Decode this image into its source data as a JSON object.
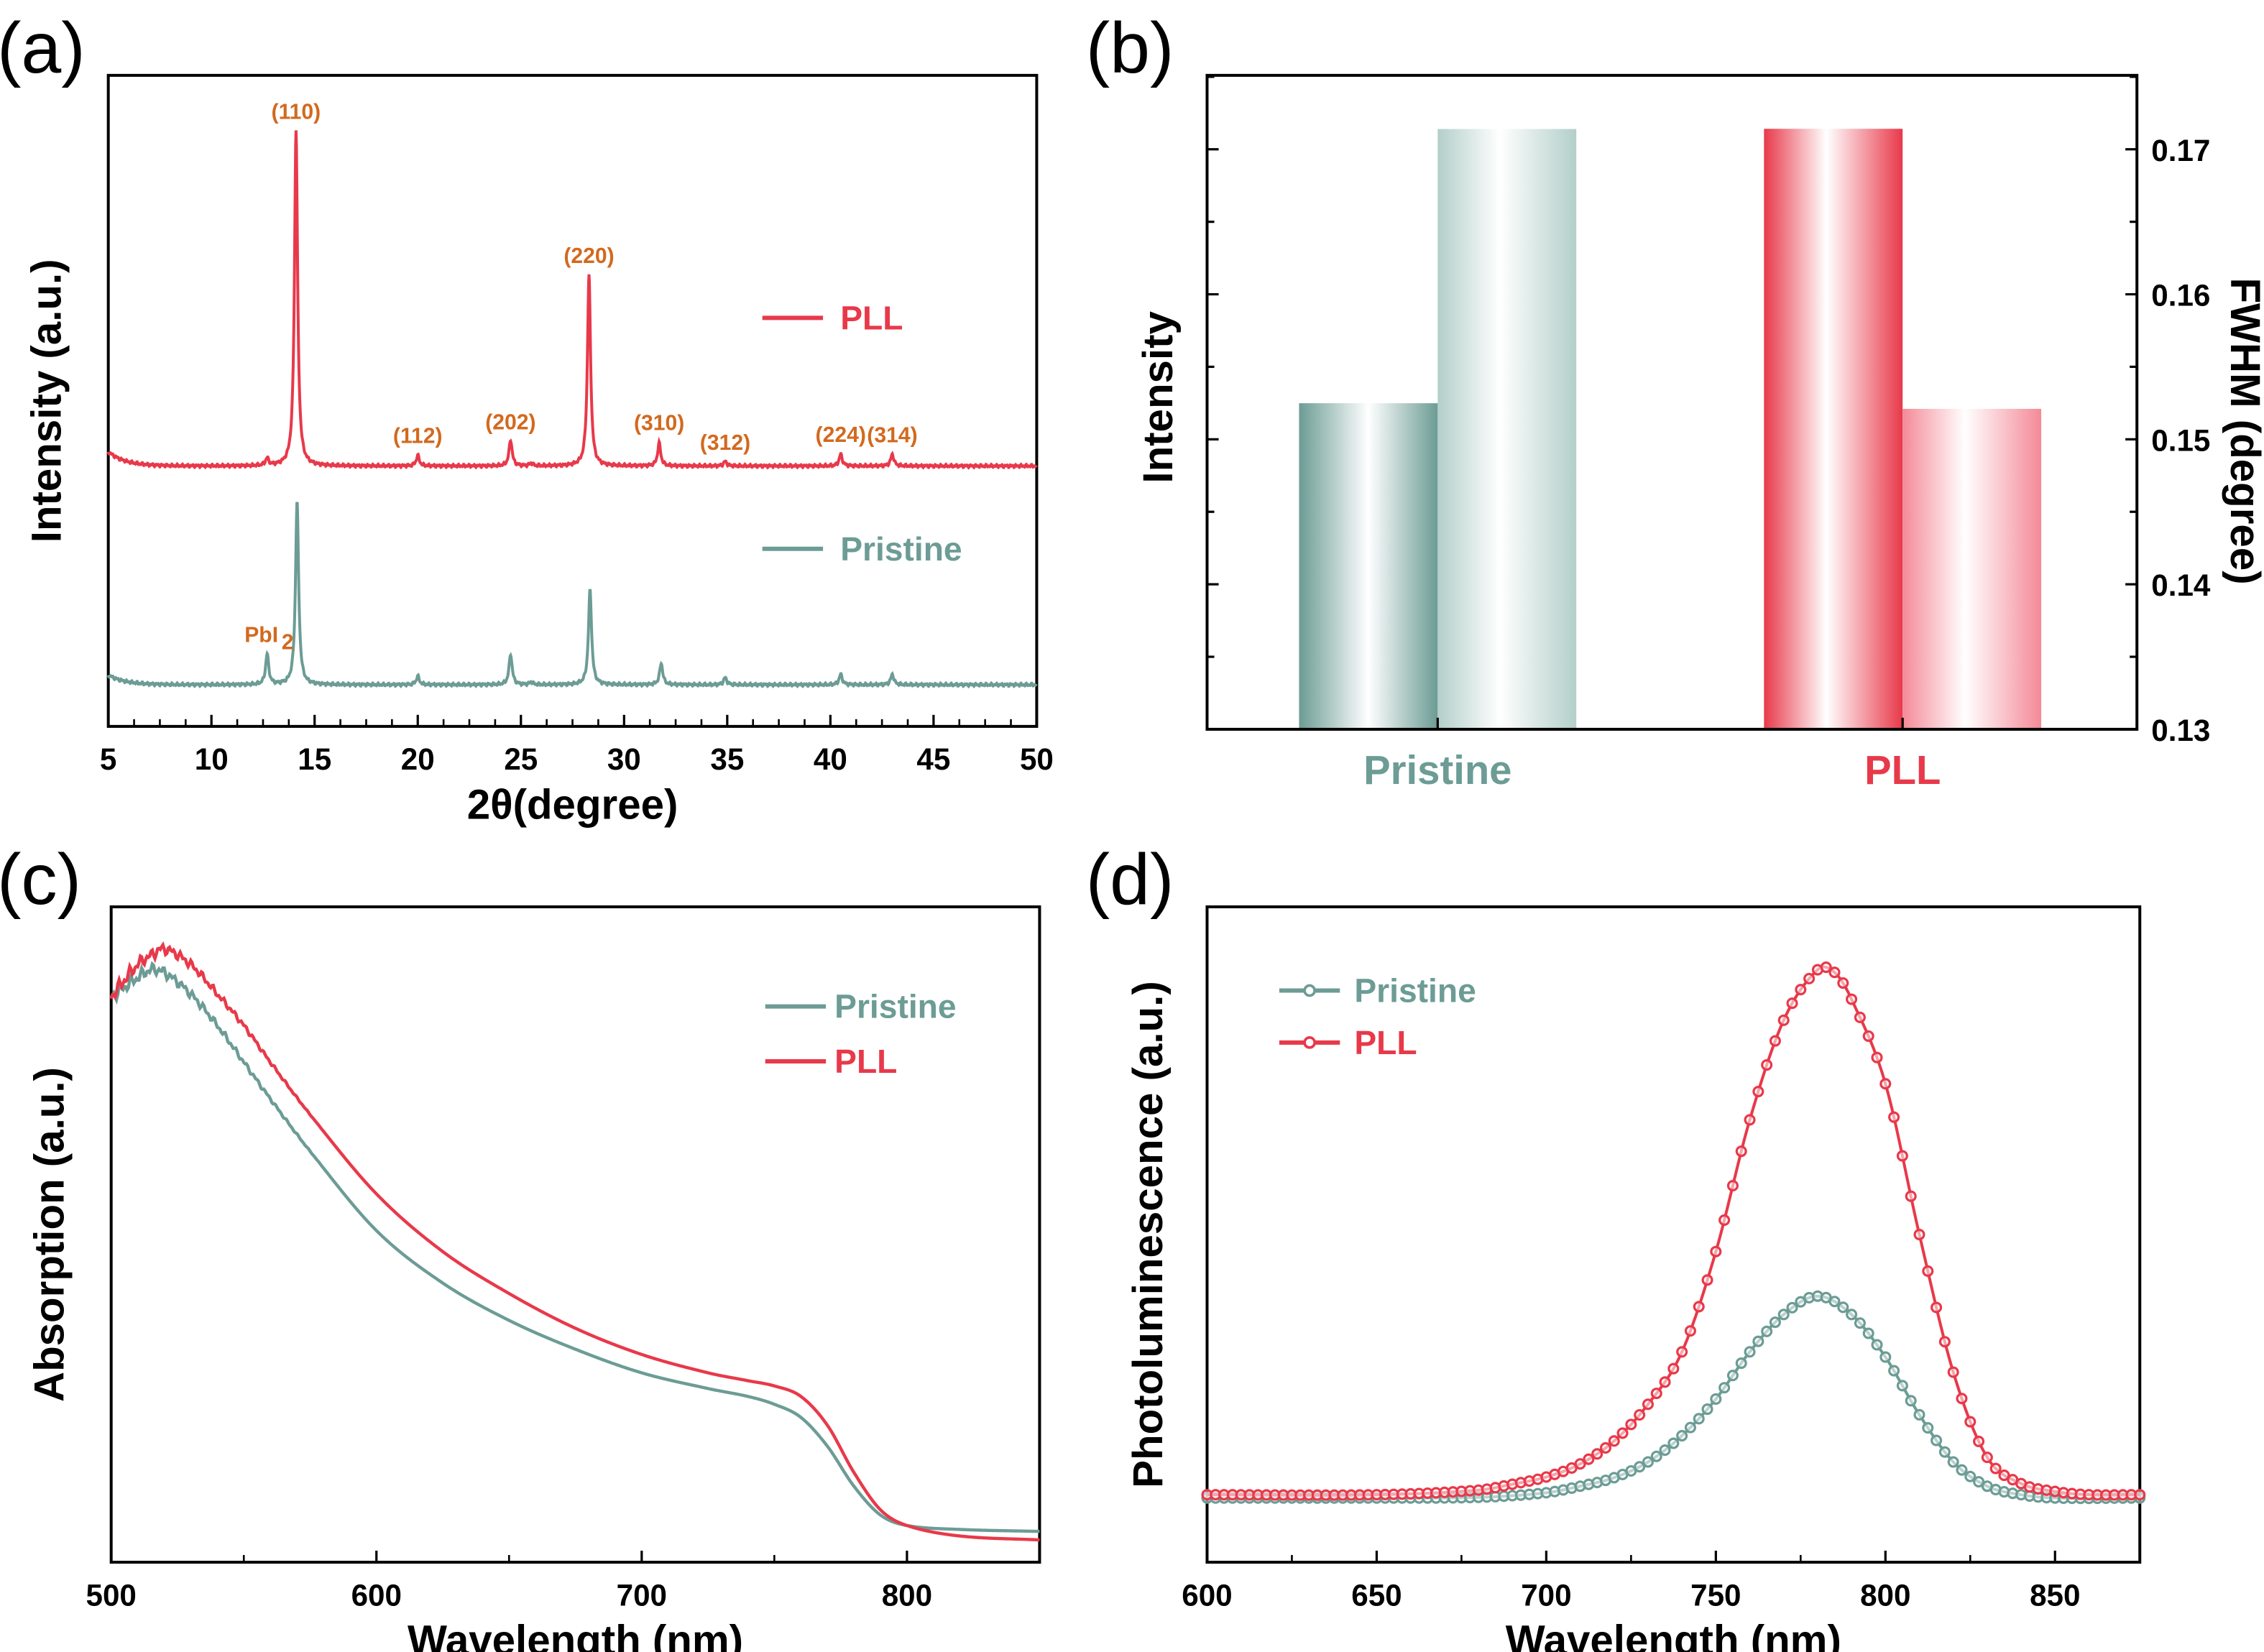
{
  "panels": {
    "a": "(a)",
    "b": "(b)",
    "c": "(c)",
    "d": "(d)"
  },
  "colors": {
    "pll": "#E8394A",
    "pristine": "#6C9C95",
    "pll_light": "#F48A98",
    "pristine_light": "#B3CFC9",
    "annotation": "#D2691E"
  },
  "chart_data": [
    {
      "panel": "a",
      "type": "line",
      "xlabel": "2θ(degree)",
      "ylabel": "Intensity (a.u.)",
      "xlim": [
        5,
        50
      ],
      "ylim": [
        0,
        100
      ],
      "xticks": [
        "5",
        "10",
        "15",
        "20",
        "25",
        "30",
        "35",
        "40",
        "45",
        "50"
      ],
      "grid": false,
      "legend": {
        "placement": "right",
        "entries": [
          "PLL",
          "Pristine"
        ]
      },
      "series": [
        {
          "name": "PLL",
          "color_key": "pll",
          "baseline": 40,
          "peaks": [
            {
              "x": 12.7,
              "intensity": 1.1
            },
            {
              "x": 14.1,
              "intensity": 51.7
            },
            {
              "x": 20.0,
              "intensity": 1.6
            },
            {
              "x": 24.5,
              "intensity": 4.0
            },
            {
              "x": 25.5,
              "intensity": 0.4
            },
            {
              "x": 28.3,
              "intensity": 29.3
            },
            {
              "x": 31.7,
              "intensity": 3.5
            },
            {
              "x": 34.9,
              "intensity": 0.7
            },
            {
              "x": 40.5,
              "intensity": 1.8
            },
            {
              "x": 43.0,
              "intensity": 1.8
            }
          ]
        },
        {
          "name": "Pristine",
          "color_key": "pristine",
          "baseline": 6.4,
          "peaks": [
            {
              "x": 12.7,
              "intensity": 4.7
            },
            {
              "x": 14.15,
              "intensity": 28.2
            },
            {
              "x": 20.0,
              "intensity": 1.3
            },
            {
              "x": 24.5,
              "intensity": 4.7
            },
            {
              "x": 25.5,
              "intensity": 0.4
            },
            {
              "x": 28.35,
              "intensity": 14.6
            },
            {
              "x": 31.8,
              "intensity": 3.3
            },
            {
              "x": 34.9,
              "intensity": 1.1
            },
            {
              "x": 40.5,
              "intensity": 1.6
            },
            {
              "x": 43.0,
              "intensity": 1.6
            }
          ]
        }
      ],
      "annotations": [
        {
          "text": "(110)",
          "x": 14.1,
          "series": 0
        },
        {
          "text": "(112)",
          "x": 20.0,
          "series": 0
        },
        {
          "text": "(202)",
          "x": 24.5,
          "series": 0
        },
        {
          "text": "(220)",
          "x": 28.3,
          "series": 0
        },
        {
          "text": "(310)",
          "x": 31.7,
          "series": 0
        },
        {
          "text": "(312)",
          "x": 34.9,
          "series": 0
        },
        {
          "text": "(224)",
          "x": 40.5,
          "series": 0
        },
        {
          "text": "(314)",
          "x": 43.0,
          "series": 0
        },
        {
          "text": "PbI",
          "sub": "2",
          "x": 12.7,
          "series": 1
        }
      ]
    },
    {
      "panel": "b",
      "type": "bar",
      "categories": [
        "Pristine",
        "PLL"
      ],
      "ylabel_left": "Intensity",
      "ylabel_right": "FWHM (degree)",
      "ylim_left": [
        0,
        1.089
      ],
      "ylim_right": [
        0.13,
        0.1751
      ],
      "yticks_right": [
        "0.13",
        "0.14",
        "0.15",
        "0.16",
        "0.17"
      ],
      "grid": false,
      "series": [
        {
          "quantity": "Intensity (relative)",
          "axis": "left",
          "values": [
            0.543,
            1.0
          ],
          "color_keys": [
            "pristine",
            "pll"
          ]
        },
        {
          "quantity": "FWHM",
          "axis": "right",
          "values": [
            0.1714,
            0.1521
          ],
          "color_keys": [
            "pristine_light",
            "pll_light"
          ]
        }
      ]
    },
    {
      "panel": "c",
      "type": "line",
      "xlabel": "Wavelength (nm)",
      "ylabel": "Absorption (a.u.)",
      "xlim": [
        500,
        850
      ],
      "ylim": [
        0,
        100
      ],
      "xticks": [
        "500",
        "600",
        "700",
        "800"
      ],
      "grid": false,
      "legend": {
        "placement": "top-right",
        "entries": [
          "Pristine",
          "PLL"
        ]
      },
      "series": [
        {
          "name": "Pristine",
          "color_key": "pristine",
          "x": [
            500,
            510,
            515,
            520,
            530,
            540,
            550,
            560,
            575,
            600,
            625,
            650,
            675,
            700,
            725,
            740,
            750,
            760,
            770,
            780,
            790,
            800,
            820,
            850
          ],
          "y": [
            86.3,
            89.2,
            90.4,
            90.0,
            86.7,
            81.9,
            76.3,
            70.7,
            62.7,
            50.6,
            42.6,
            36.9,
            32.5,
            28.9,
            26.5,
            25.3,
            24.1,
            22.1,
            17.7,
            11.6,
            7.2,
            5.6,
            5.0,
            4.7
          ]
        },
        {
          "name": "PLL",
          "color_key": "pll",
          "x": [
            500,
            510,
            515,
            520,
            530,
            540,
            550,
            560,
            575,
            600,
            625,
            650,
            675,
            700,
            725,
            740,
            750,
            760,
            770,
            780,
            790,
            800,
            820,
            850
          ],
          "y": [
            86.3,
            91.2,
            92.6,
            93.6,
            91.2,
            86.7,
            81.9,
            76.3,
            68.3,
            56.2,
            47.4,
            41.0,
            35.7,
            31.7,
            28.9,
            27.7,
            26.9,
            25.3,
            20.9,
            13.7,
            8.0,
            5.6,
            4.0,
            3.4
          ]
        }
      ]
    },
    {
      "panel": "d",
      "type": "line",
      "xlabel": "Wavelength (nm)",
      "ylabel": "Photoluminescence (a.u.)",
      "xlim": [
        600,
        875
      ],
      "ylim": [
        0,
        100
      ],
      "xticks": [
        "600",
        "650",
        "700",
        "750",
        "800",
        "850"
      ],
      "grid": false,
      "legend": {
        "placement": "top-left",
        "entries": [
          "Pristine",
          "PLL"
        ]
      },
      "series": [
        {
          "name": "Pristine",
          "color_key": "pristine",
          "x": [
            600,
            650,
            680,
            700,
            710,
            720,
            730,
            740,
            750,
            760,
            770,
            780,
            790,
            800,
            810,
            820,
            830,
            840,
            850,
            875
          ],
          "y": [
            9.8,
            9.8,
            9.9,
            10.6,
            11.6,
            12.9,
            15.3,
            19.3,
            24.9,
            32.1,
            37.8,
            40.6,
            37.8,
            31.3,
            22.5,
            15.3,
            11.6,
            10.3,
            9.8,
            9.8
          ]
        },
        {
          "name": "PLL",
          "color_key": "pll",
          "x": [
            600,
            650,
            680,
            690,
            700,
            710,
            720,
            730,
            740,
            750,
            760,
            770,
            780,
            785,
            790,
            800,
            810,
            820,
            830,
            840,
            850,
            860,
            875
          ],
          "y": [
            10.3,
            10.3,
            11.0,
            11.9,
            13.0,
            15.0,
            18.5,
            24.1,
            32.1,
            47.4,
            67.5,
            82.7,
            90.4,
            90.0,
            85.9,
            73.0,
            50.0,
            29.0,
            16.0,
            12.0,
            10.8,
            10.3,
            10.3
          ]
        }
      ]
    }
  ]
}
